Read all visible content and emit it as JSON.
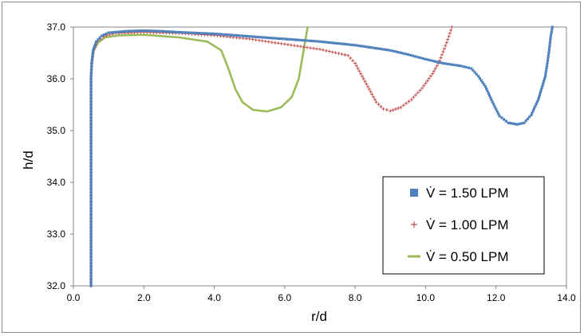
{
  "chart_data": {
    "type": "scatter",
    "xlabel": "r/d",
    "ylabel": "h/d",
    "xlim": [
      0.0,
      14.0
    ],
    "ylim": [
      32.0,
      37.0
    ],
    "x_ticks": [
      "0.0",
      "2.0",
      "4.0",
      "6.0",
      "8.0",
      "10.0",
      "12.0",
      "14.0"
    ],
    "y_ticks": [
      "32.0",
      "33.0",
      "34.0",
      "35.0",
      "36.0",
      "37.0"
    ],
    "grid": false,
    "legend_position": "bottom-right",
    "series": [
      {
        "name": "V̇ = 1.50 LPM",
        "marker": "square",
        "color": "#4f81bd",
        "points": [
          [
            0.5,
            32.0
          ],
          [
            0.5,
            32.5
          ],
          [
            0.5,
            33.0
          ],
          [
            0.5,
            33.5
          ],
          [
            0.5,
            34.0
          ],
          [
            0.5,
            34.5
          ],
          [
            0.5,
            35.0
          ],
          [
            0.5,
            35.5
          ],
          [
            0.5,
            36.0
          ],
          [
            0.52,
            36.3
          ],
          [
            0.56,
            36.55
          ],
          [
            0.65,
            36.72
          ],
          [
            0.8,
            36.83
          ],
          [
            1.0,
            36.89
          ],
          [
            1.5,
            36.92
          ],
          [
            2.0,
            36.93
          ],
          [
            2.5,
            36.92
          ],
          [
            3.0,
            36.9
          ],
          [
            4.0,
            36.87
          ],
          [
            5.0,
            36.82
          ],
          [
            6.0,
            36.77
          ],
          [
            7.0,
            36.72
          ],
          [
            8.0,
            36.65
          ],
          [
            9.0,
            36.55
          ],
          [
            9.5,
            36.47
          ],
          [
            10.0,
            36.38
          ],
          [
            10.5,
            36.3
          ],
          [
            11.0,
            36.25
          ],
          [
            11.3,
            36.2
          ],
          [
            11.5,
            36.05
          ],
          [
            11.7,
            35.85
          ],
          [
            11.9,
            35.55
          ],
          [
            12.1,
            35.28
          ],
          [
            12.35,
            35.15
          ],
          [
            12.6,
            35.12
          ],
          [
            12.8,
            35.15
          ],
          [
            13.0,
            35.3
          ],
          [
            13.2,
            35.6
          ],
          [
            13.4,
            36.05
          ],
          [
            13.5,
            36.5
          ],
          [
            13.55,
            36.8
          ],
          [
            13.6,
            37.0
          ]
        ]
      },
      {
        "name": "V̇ = 1.00 LPM",
        "marker": "plus",
        "color": "#c0504d",
        "points": [
          [
            0.5,
            32.0
          ],
          [
            0.5,
            32.5
          ],
          [
            0.5,
            33.0
          ],
          [
            0.5,
            33.5
          ],
          [
            0.5,
            34.0
          ],
          [
            0.5,
            34.5
          ],
          [
            0.5,
            35.0
          ],
          [
            0.5,
            35.5
          ],
          [
            0.5,
            36.0
          ],
          [
            0.52,
            36.3
          ],
          [
            0.57,
            36.55
          ],
          [
            0.68,
            36.72
          ],
          [
            0.85,
            36.82
          ],
          [
            1.2,
            36.88
          ],
          [
            2.0,
            36.9
          ],
          [
            3.0,
            36.88
          ],
          [
            4.0,
            36.84
          ],
          [
            5.0,
            36.77
          ],
          [
            6.0,
            36.67
          ],
          [
            7.0,
            36.57
          ],
          [
            7.8,
            36.45
          ],
          [
            8.0,
            36.3
          ],
          [
            8.2,
            36.05
          ],
          [
            8.4,
            35.8
          ],
          [
            8.6,
            35.55
          ],
          [
            8.8,
            35.42
          ],
          [
            9.0,
            35.38
          ],
          [
            9.3,
            35.45
          ],
          [
            9.6,
            35.6
          ],
          [
            9.9,
            35.82
          ],
          [
            10.2,
            36.1
          ],
          [
            10.4,
            36.35
          ],
          [
            10.6,
            36.7
          ],
          [
            10.75,
            37.0
          ]
        ]
      },
      {
        "name": "V̇ = 0.50 LPM",
        "marker": "line",
        "color": "#9bbb59",
        "points": [
          [
            0.5,
            32.0
          ],
          [
            0.5,
            32.5
          ],
          [
            0.5,
            33.0
          ],
          [
            0.5,
            33.5
          ],
          [
            0.5,
            34.0
          ],
          [
            0.5,
            34.5
          ],
          [
            0.5,
            35.0
          ],
          [
            0.5,
            35.5
          ],
          [
            0.5,
            36.0
          ],
          [
            0.52,
            36.3
          ],
          [
            0.58,
            36.55
          ],
          [
            0.7,
            36.7
          ],
          [
            0.9,
            36.8
          ],
          [
            1.3,
            36.84
          ],
          [
            2.0,
            36.85
          ],
          [
            3.0,
            36.8
          ],
          [
            3.8,
            36.72
          ],
          [
            4.2,
            36.55
          ],
          [
            4.4,
            36.2
          ],
          [
            4.6,
            35.8
          ],
          [
            4.8,
            35.55
          ],
          [
            5.1,
            35.4
          ],
          [
            5.5,
            35.37
          ],
          [
            5.9,
            35.45
          ],
          [
            6.2,
            35.65
          ],
          [
            6.4,
            36.0
          ],
          [
            6.5,
            36.4
          ],
          [
            6.6,
            36.8
          ],
          [
            6.65,
            37.0
          ]
        ]
      }
    ]
  }
}
